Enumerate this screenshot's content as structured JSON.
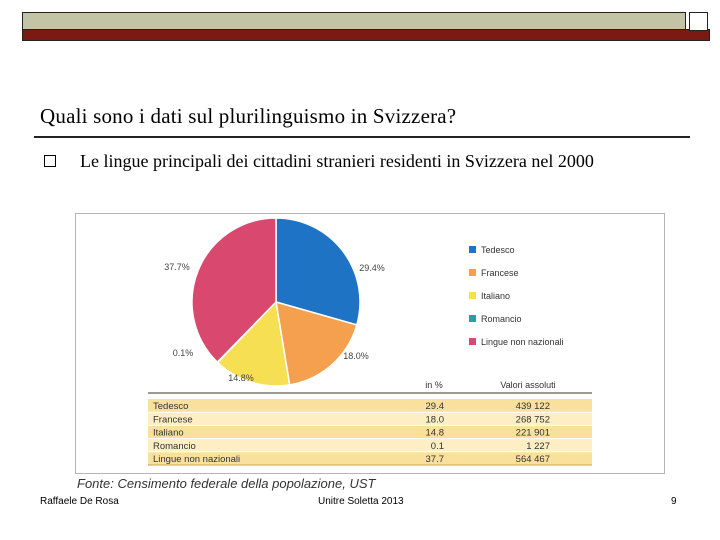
{
  "slide": {
    "title": "Quali sono i dati sul plurilinguismo in Svizzera?",
    "bullet_text": "Le lingue principali dei cittadini stranieri residenti in Svizzera nel 2000",
    "source": "Fonte: Censimento federale della popolazione, UST",
    "footer_left": "Raffaele De Rosa",
    "footer_center": "Unitre Soletta 2013",
    "footer_right": "9"
  },
  "colors": {
    "top_bar": "#c3c3a6",
    "accent_line": "#7a1a12",
    "table_bg": "#f9e09c",
    "table_stripe": "#fdeec4"
  },
  "chart_data": {
    "type": "pie",
    "categories": [
      "Tedesco",
      "Francese",
      "Italiano",
      "Romancio",
      "Lingue non nazionali"
    ],
    "percent": [
      29.4,
      18.0,
      14.8,
      0.1,
      37.7
    ],
    "slice_labels": [
      "29.4%",
      "18.0%",
      "14.8%",
      "0.1%",
      "37.7%"
    ],
    "colors": [
      "#1f73c4",
      "#f4a04f",
      "#f6df52",
      "#1aa7a4",
      "#d8486f"
    ],
    "legend_position": "right",
    "table": {
      "headers": [
        "in %",
        "Valori assoluti"
      ],
      "rows": [
        {
          "lang": "Tedesco",
          "pct": "29.4",
          "abs": "439 122"
        },
        {
          "lang": "Francese",
          "pct": "18.0",
          "abs": "268 752"
        },
        {
          "lang": "Italiano",
          "pct": "14.8",
          "abs": "221 901"
        },
        {
          "lang": "Romancio",
          "pct": "0.1",
          "abs": "1 227"
        },
        {
          "lang": "Lingue non nazionali",
          "pct": "37.7",
          "abs": "564 467"
        }
      ]
    }
  }
}
